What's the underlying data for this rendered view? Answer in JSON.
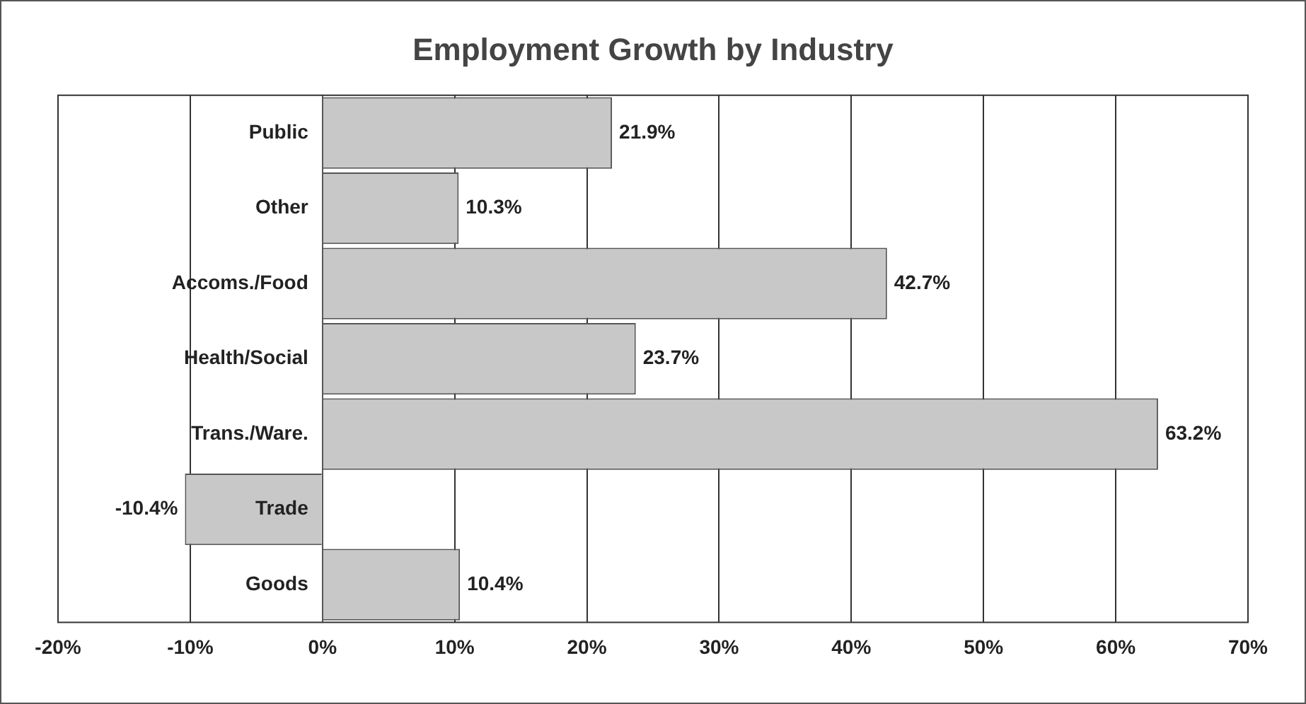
{
  "chart_data": {
    "type": "bar",
    "orientation": "horizontal",
    "title": "Employment Growth by Industry",
    "categories": [
      "Public",
      "Other",
      "Accoms./Food",
      "Health/Social",
      "Trans./Ware.",
      "Trade",
      "Goods"
    ],
    "values": [
      21.9,
      10.3,
      42.7,
      23.7,
      63.2,
      -10.4,
      10.4
    ],
    "value_labels": [
      "21.9%",
      "10.3%",
      "42.7%",
      "23.7%",
      "63.2%",
      "-10.4%",
      "10.4%"
    ],
    "color": "#c8c8c8",
    "xlim": [
      -20,
      70
    ],
    "xticks": [
      {
        "value": -20,
        "label": "-20%"
      },
      {
        "value": -10,
        "label": "-10%"
      },
      {
        "value": 0,
        "label": "0%"
      },
      {
        "value": 10,
        "label": "10%"
      },
      {
        "value": 20,
        "label": "20%"
      },
      {
        "value": 30,
        "label": "30%"
      },
      {
        "value": 40,
        "label": "40%"
      },
      {
        "value": 50,
        "label": "50%"
      },
      {
        "value": 60,
        "label": "60%"
      },
      {
        "value": 70,
        "label": "70%"
      }
    ],
    "grid": "x"
  }
}
